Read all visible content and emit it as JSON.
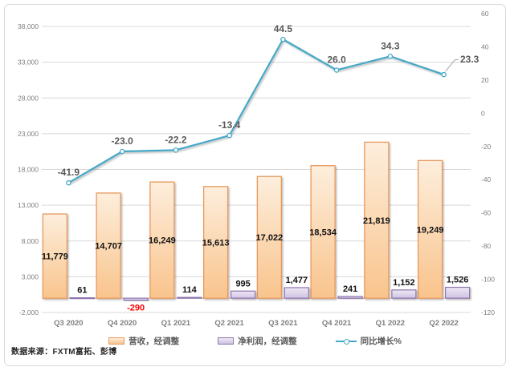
{
  "source_note": "数据来源：FXTM富拓、彭博",
  "legend": {
    "items": [
      {
        "label": "营收，经调整",
        "swatch": "bar-orange"
      },
      {
        "label": "净利润，经调整",
        "swatch": "bar-purple"
      },
      {
        "label": "同比增长%",
        "swatch": "line-teal"
      }
    ]
  },
  "chart_data": {
    "type": "combo: bar + line, dual axis",
    "categories": [
      "Q3 2020",
      "Q4 2020",
      "Q1 2021",
      "Q2 2021",
      "Q3 2021",
      "Q4 2021",
      "Q1 2022",
      "Q2 2022"
    ],
    "series": [
      {
        "name": "营收，经调整",
        "type": "bar",
        "axis": "left",
        "values": [
          11779,
          14707,
          16249,
          15613,
          17022,
          18534,
          21819,
          19249
        ],
        "labels": [
          "11,779",
          "14,707",
          "16,249",
          "15,613",
          "17,022",
          "18,534",
          "21,819",
          "19,249"
        ]
      },
      {
        "name": "净利润，经调整",
        "type": "bar",
        "axis": "left",
        "values": [
          61,
          -290,
          114,
          995,
          1477,
          241,
          1152,
          1526
        ],
        "labels": [
          "61",
          "-290",
          "114",
          "995",
          "1,477",
          "241",
          "1,152",
          "1,526"
        ]
      },
      {
        "name": "同比增长%",
        "type": "line",
        "axis": "right",
        "values": [
          -41.9,
          -23.0,
          -22.2,
          -13.4,
          44.5,
          26.0,
          34.3,
          23.3
        ],
        "labels": [
          "-41.9",
          "-23.0",
          "-22.2",
          "-13.4",
          "44.5",
          "26.0",
          "34.3",
          "23.3"
        ]
      }
    ],
    "left_axis": {
      "min": -2000,
      "max": 38000,
      "step": 5000,
      "tick_labels": [
        "38,000",
        "33,000",
        "28,000",
        "23,000",
        "18,000",
        "13,000",
        "8,000",
        "3,000",
        "-2,000"
      ]
    },
    "right_axis": {
      "min": -120,
      "max": 60,
      "step": 20,
      "tick_labels": [
        "60",
        "40",
        "20",
        "0",
        "-20",
        "-40",
        "-60",
        "-80",
        "-100",
        "-120"
      ]
    },
    "grid": true,
    "legend_position": "bottom"
  },
  "colors": {
    "revenue_fill_top": "#FDEEDC",
    "revenue_fill_bottom": "#F9C48D",
    "revenue_border": "#E8995D",
    "profit_fill_top": "#EFE9F5",
    "profit_fill_bottom": "#CFC2E2",
    "profit_border": "#8E75AD",
    "growth_line": "#44A8C7",
    "bar_label": "#111111",
    "negative_label": "#FF0000",
    "line_label": "#595959",
    "axis_label": "#7F7F7F",
    "category_label": "#7F7F7F",
    "gridline": "#D9D9D9",
    "zero_axis": "#C6C6C6",
    "leader_line": "#A6A6A6",
    "frame_border": "#D8D8D8"
  }
}
